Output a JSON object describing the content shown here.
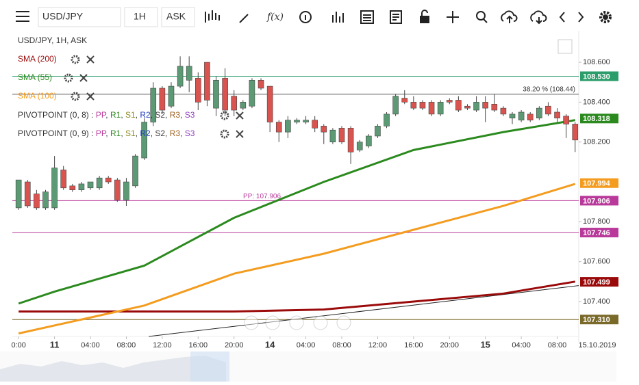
{
  "toolbar": {
    "symbol": "USD/JPY",
    "interval": "1H",
    "side": "ASK",
    "function_icon": "f(x)"
  },
  "chart_data": {
    "type": "candlestick",
    "title": "USD/JPY, 1H, ASK",
    "x": [
      -4,
      -3,
      -2,
      -1,
      0,
      1,
      2,
      3,
      4,
      5,
      6,
      7,
      8,
      9,
      10,
      11,
      12,
      13,
      14,
      15,
      16,
      17,
      18,
      19,
      20,
      21,
      22,
      23,
      24,
      25,
      26,
      27,
      28,
      29,
      30,
      31,
      32,
      33,
      34,
      35,
      36,
      37,
      38,
      39,
      40,
      41,
      42,
      43,
      44,
      45,
      46,
      47,
      48,
      49,
      50,
      51,
      52,
      53,
      54,
      55,
      56,
      57,
      58
    ],
    "open": [
      107.87,
      108.0,
      107.94,
      107.87,
      107.87,
      108.06,
      107.98,
      107.96,
      107.97,
      107.97,
      108.02,
      108.01,
      107.91,
      107.98,
      108.12,
      108.3,
      108.47,
      108.38,
      108.48,
      108.51,
      108.52,
      108.6,
      108.37,
      108.52,
      108.43,
      108.37,
      108.38,
      108.51,
      108.48,
      108.3,
      108.25,
      108.3,
      108.3,
      108.31,
      108.28,
      108.2,
      108.27,
      108.27,
      108.16,
      108.18,
      108.23,
      108.28,
      108.34,
      108.42,
      108.4,
      108.4,
      108.4,
      108.34,
      108.41,
      108.41,
      108.38,
      108.36,
      108.4,
      108.39,
      108.37,
      108.32,
      108.31,
      108.34,
      108.32,
      108.38,
      108.35,
      108.33,
      108.29
    ],
    "high": [
      108.01,
      108.01,
      107.96,
      107.96,
      108.13,
      108.08,
      107.99,
      108.0,
      108.0,
      108.03,
      108.03,
      108.02,
      108.02,
      108.14,
      108.32,
      108.5,
      108.48,
      108.5,
      108.63,
      108.63,
      108.55,
      108.6,
      108.53,
      108.57,
      108.46,
      108.41,
      108.52,
      108.52,
      108.48,
      108.31,
      108.33,
      108.32,
      108.33,
      108.33,
      108.29,
      108.27,
      108.28,
      108.28,
      108.21,
      108.24,
      108.29,
      108.35,
      108.44,
      108.46,
      108.43,
      108.41,
      108.41,
      108.41,
      108.42,
      108.43,
      108.39,
      108.43,
      108.43,
      108.44,
      108.38,
      108.35,
      108.36,
      108.35,
      108.38,
      108.4,
      108.37,
      108.34,
      108.3
    ],
    "low": [
      107.86,
      107.87,
      107.86,
      107.86,
      107.86,
      107.96,
      107.95,
      107.95,
      107.96,
      107.96,
      107.99,
      107.9,
      107.88,
      107.97,
      108.11,
      108.28,
      108.34,
      108.37,
      108.47,
      108.45,
      108.36,
      108.38,
      108.33,
      108.33,
      108.33,
      108.36,
      108.37,
      108.46,
      108.25,
      108.2,
      108.22,
      108.29,
      108.29,
      108.25,
      108.19,
      108.19,
      108.19,
      108.09,
      108.15,
      108.17,
      108.22,
      108.27,
      108.33,
      108.39,
      108.36,
      108.36,
      108.33,
      108.33,
      108.39,
      108.35,
      108.36,
      108.35,
      108.3,
      108.35,
      108.33,
      108.29,
      108.3,
      108.3,
      108.31,
      108.33,
      108.3,
      108.22,
      108.15
    ],
    "close": [
      108.01,
      107.88,
      107.87,
      107.95,
      108.07,
      107.97,
      107.96,
      107.99,
      108.0,
      108.02,
      108.0,
      107.91,
      108.0,
      108.13,
      108.3,
      108.47,
      108.36,
      108.48,
      108.58,
      108.58,
      108.4,
      108.41,
      108.51,
      108.36,
      108.36,
      108.4,
      108.51,
      108.47,
      108.3,
      108.25,
      108.31,
      108.31,
      108.31,
      108.27,
      108.25,
      108.26,
      108.2,
      108.15,
      108.2,
      108.23,
      108.28,
      108.34,
      108.43,
      108.4,
      108.37,
      108.37,
      108.34,
      108.4,
      108.4,
      108.36,
      108.37,
      108.4,
      108.37,
      108.36,
      108.34,
      108.34,
      108.35,
      108.31,
      108.37,
      108.34,
      108.32,
      108.29,
      108.21
    ],
    "up_color": "#5b9a74",
    "down_color": "#d9534f",
    "xlim": [
      -4.7,
      58.4
    ],
    "ylim": [
      107.225,
      108.758
    ],
    "xticks": [
      {
        "value": -4,
        "label": "0:00"
      },
      {
        "value": 0,
        "label": "11"
      },
      {
        "value": 4,
        "label": "04:00"
      },
      {
        "value": 8,
        "label": "08:00"
      },
      {
        "value": 12,
        "label": "12:00"
      },
      {
        "value": 16,
        "label": "16:00"
      },
      {
        "value": 20,
        "label": "20:00"
      },
      {
        "value": 24,
        "label": "14"
      },
      {
        "value": 28,
        "label": "04:00"
      },
      {
        "value": 32,
        "label": "08:00"
      },
      {
        "value": 36,
        "label": "12:00"
      },
      {
        "value": 40,
        "label": "16:00"
      },
      {
        "value": 44,
        "label": "20:00"
      },
      {
        "value": 48,
        "label": "15"
      },
      {
        "value": 52,
        "label": "04:00"
      },
      {
        "value": 56,
        "label": "08:00"
      }
    ],
    "date_label": "15.10.2019",
    "yticks": [
      {
        "value": 108.6,
        "label": "108.600"
      },
      {
        "value": 108.4,
        "label": "108.400"
      },
      {
        "value": 108.2,
        "label": "108.200"
      },
      {
        "value": 107.8,
        "label": "107.800"
      },
      {
        "value": 107.6,
        "label": "107.600"
      },
      {
        "value": 107.4,
        "label": "107.400"
      }
    ],
    "series": [
      {
        "name": "SMA (200)",
        "color": "#9b0a0a",
        "x": [
          -4,
          0,
          10,
          20,
          30,
          40,
          50,
          58
        ],
        "values": [
          107.35,
          107.35,
          107.35,
          107.35,
          107.36,
          107.4,
          107.44,
          107.5
        ],
        "last": {
          "value": 107.499,
          "label": "107.499"
        }
      },
      {
        "name": "SMA (55)",
        "color": "#2b8a1e",
        "x": [
          -4,
          0,
          10,
          20,
          30,
          40,
          50,
          58
        ],
        "values": [
          107.39,
          107.45,
          107.58,
          107.82,
          108.0,
          108.16,
          108.25,
          108.31
        ],
        "last": {
          "value": 108.318,
          "label": "108.318"
        }
      },
      {
        "name": "SMA (100)",
        "color": "#f39c1f",
        "x": [
          -4,
          0,
          10,
          20,
          30,
          40,
          50,
          58
        ],
        "values": [
          107.24,
          107.28,
          107.38,
          107.54,
          107.64,
          107.76,
          107.88,
          107.99
        ],
        "last": {
          "value": 107.994,
          "label": "107.994"
        }
      }
    ],
    "levels": [
      {
        "value": 108.53,
        "label": "108.530",
        "color": "#2a9d6a"
      },
      {
        "value": 107.906,
        "label": "107.906",
        "color": "#b8399a"
      },
      {
        "value": 107.746,
        "label": "107.746",
        "color": "#b8399a"
      },
      {
        "value": 107.31,
        "label": "107.310",
        "color": "#7a6a2a"
      }
    ],
    "pivot_annotation": "PP: 107.906",
    "fib": {
      "value": 108.44,
      "label": "38.20 % (108.44)"
    },
    "trendline": {
      "x": [
        10.5,
        58.4
      ],
      "values": [
        107.225,
        107.48
      ]
    },
    "indicators": [
      {
        "name": "PIVOTPOINT (0, 8)",
        "items": [
          "PP",
          "R1",
          "S1",
          "R2",
          "S2",
          "R3",
          "S3"
        ]
      },
      {
        "name": "PIVOTPOINT (0, 9)",
        "items": [
          "PP",
          "R1",
          "S1",
          "R2",
          "S2",
          "R3",
          "S3"
        ]
      }
    ],
    "item_prefix": ": ",
    "item_separator": ", ",
    "item_colors": [
      "#b8399a",
      "#2b8a1e",
      "#8a8a20",
      "#2040c0",
      "#404040",
      "#a06020",
      "#9040c0"
    ]
  }
}
